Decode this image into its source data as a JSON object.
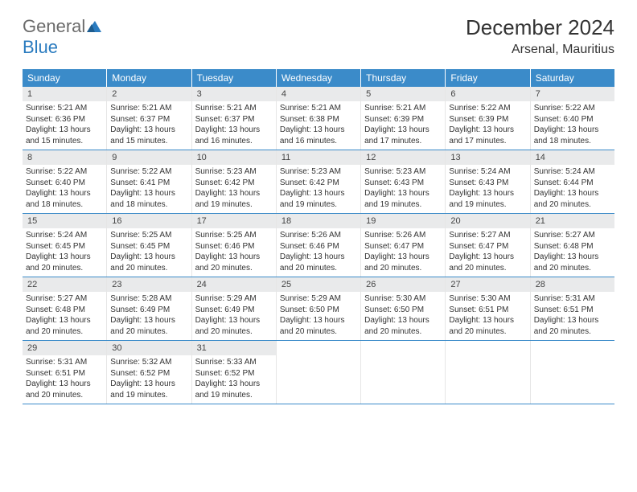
{
  "brand": {
    "general": "General",
    "blue": "Blue"
  },
  "title": "December 2024",
  "location": "Arsenal, Mauritius",
  "colors": {
    "header_bg": "#3b8bc9",
    "header_text": "#ffffff",
    "daynum_bg": "#e9eaeb",
    "row_border": "#3b8bc9",
    "logo_blue": "#2a7bbf",
    "logo_gray": "#6b6b6b"
  },
  "weekdays": [
    "Sunday",
    "Monday",
    "Tuesday",
    "Wednesday",
    "Thursday",
    "Friday",
    "Saturday"
  ],
  "weeks": [
    [
      {
        "n": "1",
        "sr": "Sunrise: 5:21 AM",
        "ss": "Sunset: 6:36 PM",
        "d1": "Daylight: 13 hours",
        "d2": "and 15 minutes."
      },
      {
        "n": "2",
        "sr": "Sunrise: 5:21 AM",
        "ss": "Sunset: 6:37 PM",
        "d1": "Daylight: 13 hours",
        "d2": "and 15 minutes."
      },
      {
        "n": "3",
        "sr": "Sunrise: 5:21 AM",
        "ss": "Sunset: 6:37 PM",
        "d1": "Daylight: 13 hours",
        "d2": "and 16 minutes."
      },
      {
        "n": "4",
        "sr": "Sunrise: 5:21 AM",
        "ss": "Sunset: 6:38 PM",
        "d1": "Daylight: 13 hours",
        "d2": "and 16 minutes."
      },
      {
        "n": "5",
        "sr": "Sunrise: 5:21 AM",
        "ss": "Sunset: 6:39 PM",
        "d1": "Daylight: 13 hours",
        "d2": "and 17 minutes."
      },
      {
        "n": "6",
        "sr": "Sunrise: 5:22 AM",
        "ss": "Sunset: 6:39 PM",
        "d1": "Daylight: 13 hours",
        "d2": "and 17 minutes."
      },
      {
        "n": "7",
        "sr": "Sunrise: 5:22 AM",
        "ss": "Sunset: 6:40 PM",
        "d1": "Daylight: 13 hours",
        "d2": "and 18 minutes."
      }
    ],
    [
      {
        "n": "8",
        "sr": "Sunrise: 5:22 AM",
        "ss": "Sunset: 6:40 PM",
        "d1": "Daylight: 13 hours",
        "d2": "and 18 minutes."
      },
      {
        "n": "9",
        "sr": "Sunrise: 5:22 AM",
        "ss": "Sunset: 6:41 PM",
        "d1": "Daylight: 13 hours",
        "d2": "and 18 minutes."
      },
      {
        "n": "10",
        "sr": "Sunrise: 5:23 AM",
        "ss": "Sunset: 6:42 PM",
        "d1": "Daylight: 13 hours",
        "d2": "and 19 minutes."
      },
      {
        "n": "11",
        "sr": "Sunrise: 5:23 AM",
        "ss": "Sunset: 6:42 PM",
        "d1": "Daylight: 13 hours",
        "d2": "and 19 minutes."
      },
      {
        "n": "12",
        "sr": "Sunrise: 5:23 AM",
        "ss": "Sunset: 6:43 PM",
        "d1": "Daylight: 13 hours",
        "d2": "and 19 minutes."
      },
      {
        "n": "13",
        "sr": "Sunrise: 5:24 AM",
        "ss": "Sunset: 6:43 PM",
        "d1": "Daylight: 13 hours",
        "d2": "and 19 minutes."
      },
      {
        "n": "14",
        "sr": "Sunrise: 5:24 AM",
        "ss": "Sunset: 6:44 PM",
        "d1": "Daylight: 13 hours",
        "d2": "and 20 minutes."
      }
    ],
    [
      {
        "n": "15",
        "sr": "Sunrise: 5:24 AM",
        "ss": "Sunset: 6:45 PM",
        "d1": "Daylight: 13 hours",
        "d2": "and 20 minutes."
      },
      {
        "n": "16",
        "sr": "Sunrise: 5:25 AM",
        "ss": "Sunset: 6:45 PM",
        "d1": "Daylight: 13 hours",
        "d2": "and 20 minutes."
      },
      {
        "n": "17",
        "sr": "Sunrise: 5:25 AM",
        "ss": "Sunset: 6:46 PM",
        "d1": "Daylight: 13 hours",
        "d2": "and 20 minutes."
      },
      {
        "n": "18",
        "sr": "Sunrise: 5:26 AM",
        "ss": "Sunset: 6:46 PM",
        "d1": "Daylight: 13 hours",
        "d2": "and 20 minutes."
      },
      {
        "n": "19",
        "sr": "Sunrise: 5:26 AM",
        "ss": "Sunset: 6:47 PM",
        "d1": "Daylight: 13 hours",
        "d2": "and 20 minutes."
      },
      {
        "n": "20",
        "sr": "Sunrise: 5:27 AM",
        "ss": "Sunset: 6:47 PM",
        "d1": "Daylight: 13 hours",
        "d2": "and 20 minutes."
      },
      {
        "n": "21",
        "sr": "Sunrise: 5:27 AM",
        "ss": "Sunset: 6:48 PM",
        "d1": "Daylight: 13 hours",
        "d2": "and 20 minutes."
      }
    ],
    [
      {
        "n": "22",
        "sr": "Sunrise: 5:27 AM",
        "ss": "Sunset: 6:48 PM",
        "d1": "Daylight: 13 hours",
        "d2": "and 20 minutes."
      },
      {
        "n": "23",
        "sr": "Sunrise: 5:28 AM",
        "ss": "Sunset: 6:49 PM",
        "d1": "Daylight: 13 hours",
        "d2": "and 20 minutes."
      },
      {
        "n": "24",
        "sr": "Sunrise: 5:29 AM",
        "ss": "Sunset: 6:49 PM",
        "d1": "Daylight: 13 hours",
        "d2": "and 20 minutes."
      },
      {
        "n": "25",
        "sr": "Sunrise: 5:29 AM",
        "ss": "Sunset: 6:50 PM",
        "d1": "Daylight: 13 hours",
        "d2": "and 20 minutes."
      },
      {
        "n": "26",
        "sr": "Sunrise: 5:30 AM",
        "ss": "Sunset: 6:50 PM",
        "d1": "Daylight: 13 hours",
        "d2": "and 20 minutes."
      },
      {
        "n": "27",
        "sr": "Sunrise: 5:30 AM",
        "ss": "Sunset: 6:51 PM",
        "d1": "Daylight: 13 hours",
        "d2": "and 20 minutes."
      },
      {
        "n": "28",
        "sr": "Sunrise: 5:31 AM",
        "ss": "Sunset: 6:51 PM",
        "d1": "Daylight: 13 hours",
        "d2": "and 20 minutes."
      }
    ],
    [
      {
        "n": "29",
        "sr": "Sunrise: 5:31 AM",
        "ss": "Sunset: 6:51 PM",
        "d1": "Daylight: 13 hours",
        "d2": "and 20 minutes."
      },
      {
        "n": "30",
        "sr": "Sunrise: 5:32 AM",
        "ss": "Sunset: 6:52 PM",
        "d1": "Daylight: 13 hours",
        "d2": "and 19 minutes."
      },
      {
        "n": "31",
        "sr": "Sunrise: 5:33 AM",
        "ss": "Sunset: 6:52 PM",
        "d1": "Daylight: 13 hours",
        "d2": "and 19 minutes."
      },
      null,
      null,
      null,
      null
    ]
  ]
}
